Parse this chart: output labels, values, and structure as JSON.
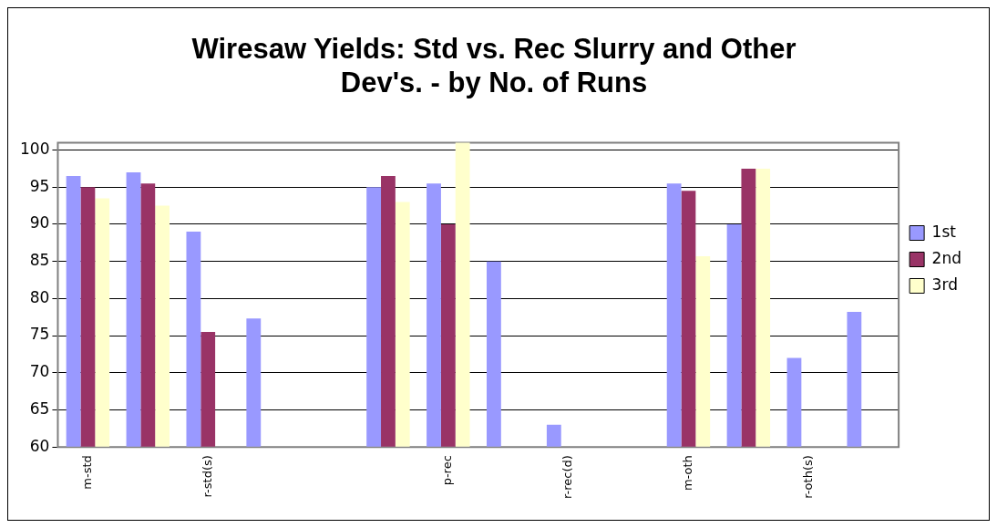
{
  "chart_data": {
    "type": "bar",
    "title": "Wiresaw Yields: Std vs. Rec Slurry and Other Dev's. - by No. of Runs",
    "categories": [
      "m-std",
      null,
      "r-std(s)",
      null,
      null,
      null,
      "p-rec",
      null,
      "r-rec(d)",
      null,
      "m-oth",
      null,
      "r-oth(s)",
      null
    ],
    "series": [
      {
        "name": "1st",
        "color": "#9999ff",
        "values": [
          96.5,
          97,
          89,
          77.3,
          null,
          95,
          95.5,
          85,
          63,
          null,
          95.5,
          90,
          72,
          78.2
        ]
      },
      {
        "name": "2nd",
        "color": "#993366",
        "values": [
          95,
          95.5,
          75.5,
          null,
          null,
          96.5,
          90,
          null,
          null,
          null,
          94.5,
          97.5,
          null,
          null
        ]
      },
      {
        "name": "3rd",
        "color": "#ffffcc",
        "values": [
          93.5,
          92.5,
          null,
          null,
          null,
          93,
          101,
          null,
          null,
          null,
          85.7,
          97.5,
          null,
          null
        ]
      }
    ],
    "ylim": [
      60,
      101
    ],
    "yticks": [
      60,
      65,
      70,
      75,
      80,
      85,
      90,
      95,
      100
    ],
    "grid": "y",
    "legend": "right"
  }
}
